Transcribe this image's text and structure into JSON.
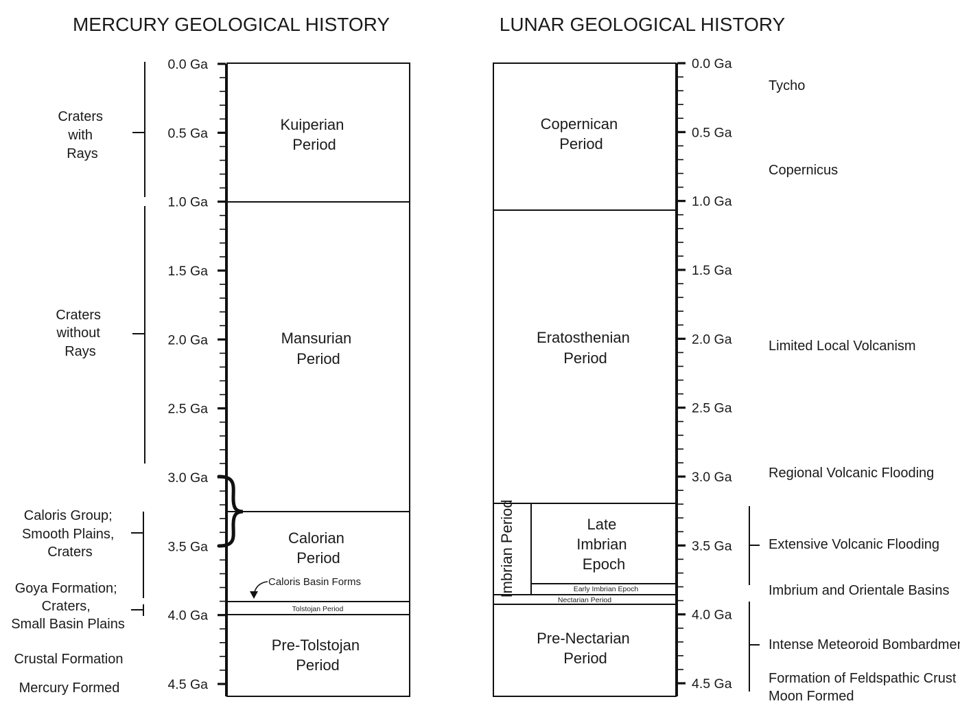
{
  "mercury": {
    "title": "MERCURY GEOLOGICAL HISTORY",
    "ticks": [
      "0.0 Ga",
      "0.5 Ga",
      "1.0 Ga",
      "1.5 Ga",
      "2.0 Ga",
      "2.5 Ga",
      "3.0 Ga",
      "3.5 Ga",
      "4.0 Ga",
      "4.5 Ga"
    ],
    "periods": {
      "kuiperian": [
        "Kuiperian",
        "Period"
      ],
      "mansurian": [
        "Mansurian",
        "Period"
      ],
      "calorian": [
        "Calorian",
        "Period"
      ],
      "tolstojan": "Tolstojan Period",
      "pre_tolstojan": [
        "Pre-Tolstojan",
        "Period"
      ]
    },
    "caloris_basin": "Caloris Basin Forms",
    "events": {
      "rays": [
        "Craters",
        "with",
        "Rays"
      ],
      "no_rays": [
        "Craters",
        "without",
        "Rays"
      ],
      "caloris_group": [
        "Caloris Group;",
        "Smooth Plains,",
        "Craters"
      ],
      "goya": [
        "Goya Formation;",
        "Craters,",
        "Small Basin Plains"
      ],
      "crustal": "Crustal Formation",
      "formed": "Mercury Formed"
    }
  },
  "lunar": {
    "title": "LUNAR GEOLOGICAL HISTORY",
    "ticks": [
      "0.0 Ga",
      "0.5 Ga",
      "1.0 Ga",
      "1.5 Ga",
      "2.0 Ga",
      "2.5 Ga",
      "3.0 Ga",
      "3.5 Ga",
      "4.0 Ga",
      "4.5 Ga"
    ],
    "periods": {
      "copernican": [
        "Copernican",
        "Period"
      ],
      "eratosthenian": [
        "Eratosthenian",
        "Period"
      ],
      "imbrian": "Imbrian Period",
      "late_imbrian": [
        "Late",
        "Imbrian",
        "Epoch"
      ],
      "early_imbrian": "Early Imbrian Epoch",
      "nectarian": "Nectarian Period",
      "pre_nectarian": [
        "Pre-Nectarian",
        "Period"
      ]
    },
    "events": {
      "tycho": "Tycho",
      "copernicus": "Copernicus",
      "limited": "Limited Local Volcanism",
      "regional": "Regional Volcanic Flooding",
      "extensive": "Extensive Volcanic Flooding",
      "imbrium": "Imbrium and Orientale Basins",
      "intense": "Intense Meteoroid Bombardment",
      "feldspathic": "Formation of Feldspathic Crust",
      "moon_formed": "Moon Formed"
    }
  }
}
